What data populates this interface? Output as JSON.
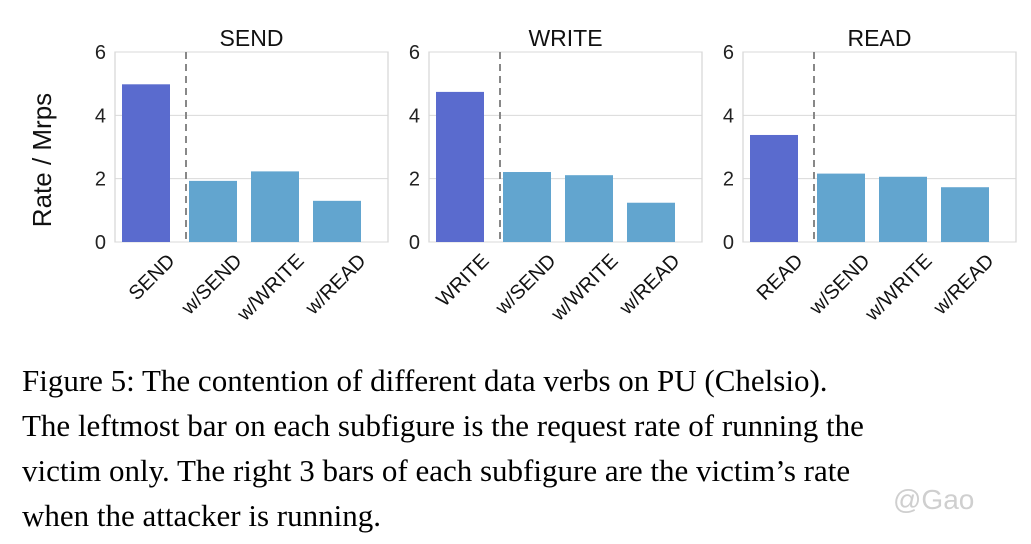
{
  "figure": {
    "ylabel": "Rate / Mrps",
    "yticks": [
      0,
      2,
      4,
      6
    ],
    "colors": {
      "victim": "#5a6bce",
      "attack": "#62a5cf",
      "divider": "#888888",
      "grid": "#d9d9d9",
      "axis": "#cccccc"
    }
  },
  "chart_data": [
    {
      "type": "bar",
      "title": "SEND",
      "categories": [
        "SEND",
        "w/SEND",
        "w/WRITE",
        "w/READ"
      ],
      "values": [
        4.98,
        1.93,
        2.23,
        1.3
      ],
      "ylim": [
        0,
        6
      ],
      "ylabel": "Rate / Mrps",
      "xlabel": "",
      "grid": true
    },
    {
      "type": "bar",
      "title": "WRITE",
      "categories": [
        "WRITE",
        "w/SEND",
        "w/WRITE",
        "w/READ"
      ],
      "values": [
        4.74,
        2.21,
        2.11,
        1.24
      ],
      "ylim": [
        0,
        6
      ],
      "ylabel": "",
      "xlabel": "",
      "grid": true
    },
    {
      "type": "bar",
      "title": "READ",
      "categories": [
        "READ",
        "w/SEND",
        "w/WRITE",
        "w/READ"
      ],
      "values": [
        3.38,
        2.16,
        2.06,
        1.73
      ],
      "ylim": [
        0,
        6
      ],
      "ylabel": "",
      "xlabel": "",
      "grid": true
    }
  ],
  "caption": {
    "lines": [
      "Figure 5: The contention of different data verbs on PU (Chelsio).",
      "The leftmost bar on each subfigure is the request rate of running the",
      "victim only. The right 3 bars of each subfigure are the victim’s rate",
      "when the attacker is running."
    ]
  },
  "watermark": "@Gao"
}
